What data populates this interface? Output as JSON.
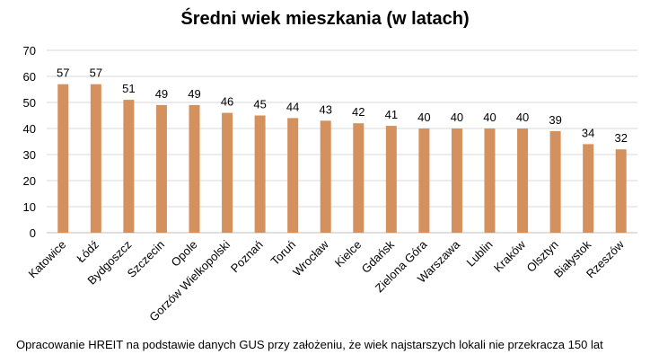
{
  "chart_data": {
    "type": "bar",
    "title": "Średni wiek mieszkania (w latach)",
    "categories": [
      "Katowice",
      "Łódź",
      "Bydgoszcz",
      "Szczecin",
      "Opole",
      "Gorzów Wielkopolski",
      "Poznań",
      "Toruń",
      "Wrocław",
      "Kielce",
      "Gdańsk",
      "Zielona Góra",
      "Warszawa",
      "Lublin",
      "Kraków",
      "Olsztyn",
      "Białystok",
      "Rzeszów"
    ],
    "values": [
      57,
      57,
      51,
      49,
      49,
      46,
      45,
      44,
      43,
      42,
      41,
      40,
      40,
      40,
      40,
      39,
      34,
      32
    ],
    "ylim": [
      0,
      70
    ],
    "yticks": [
      0,
      10,
      20,
      30,
      40,
      50,
      60,
      70
    ],
    "grid": true,
    "xlabel": "",
    "ylabel": "",
    "bar_color": "#D4915D",
    "note": "Opracowanie HREIT na podstawie danych GUS przy założeniu, że wiek najstarszych lokali nie przekracza 150 lat"
  }
}
